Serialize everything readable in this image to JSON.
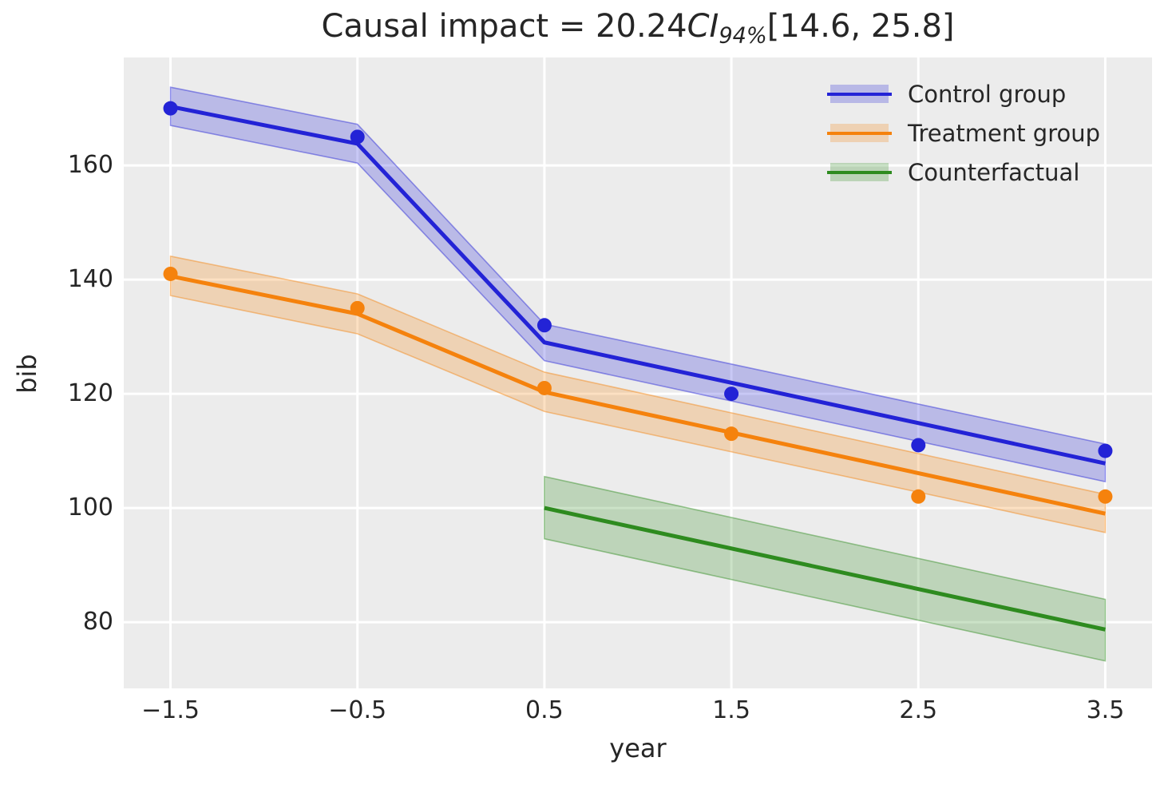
{
  "title": {
    "prefix": "Causal impact = 20.24",
    "ci": "CI",
    "sub": "94%",
    "interval": "[14.6, 25.8]"
  },
  "colors": {
    "figure_background": "#ffffff",
    "plot_background": "#ececec",
    "grid": "#ffffff",
    "text": "#262626",
    "control": "#2323d6",
    "treatment": "#f5820d",
    "counterfactual": "#2e8b1f"
  },
  "chart_data": {
    "type": "line",
    "title": "Causal impact = 20.24CI94%[14.6, 25.8]",
    "xlabel": "year",
    "ylabel": "bib",
    "xlim": [
      -1.75,
      3.75
    ],
    "ylim": [
      68.4,
      178.9
    ],
    "x_ticks": [
      -1.5,
      -0.5,
      0.5,
      1.5,
      2.5,
      3.5
    ],
    "x_tick_labels": [
      "−1.5",
      "−0.5",
      "0.5",
      "1.5",
      "2.5",
      "3.5"
    ],
    "y_ticks": [
      80,
      100,
      120,
      140,
      160
    ],
    "y_tick_labels": [
      "80",
      "100",
      "120",
      "140",
      "160"
    ],
    "grid": true,
    "legend_position": "upper right",
    "series": [
      {
        "name": "Control group",
        "color": "#2323d6",
        "band_alpha": 0.25,
        "line_x": [
          -1.5,
          -0.5,
          0.5,
          3.5
        ],
        "line_y": [
          170.3,
          163.8,
          129.0,
          107.8
        ],
        "band_upper": [
          173.7,
          167.2,
          132.2,
          111.2
        ],
        "band_lower": [
          167.0,
          160.4,
          125.8,
          104.6
        ],
        "scatter_x": [
          -1.5,
          -0.5,
          0.5,
          1.5,
          2.5,
          3.5
        ],
        "scatter_y": [
          170,
          165,
          132,
          120,
          111,
          110
        ]
      },
      {
        "name": "Treatment group",
        "color": "#f5820d",
        "band_alpha": 0.25,
        "line_x": [
          -1.5,
          -0.5,
          0.5,
          3.5
        ],
        "line_y": [
          140.6,
          134.0,
          120.3,
          99.0
        ],
        "band_upper": [
          144.1,
          137.5,
          123.8,
          102.4
        ],
        "band_lower": [
          137.2,
          130.5,
          116.9,
          95.7
        ],
        "scatter_x": [
          -1.5,
          -0.5,
          0.5,
          1.5,
          2.5,
          3.5
        ],
        "scatter_y": [
          141,
          135,
          121,
          113,
          102,
          102
        ]
      },
      {
        "name": "Counterfactual",
        "color": "#2e8b1f",
        "band_alpha": 0.25,
        "line_x": [
          0.5,
          3.5
        ],
        "line_y": [
          100.0,
          78.7
        ],
        "band_upper": [
          105.5,
          84.0
        ],
        "band_lower": [
          94.6,
          73.2
        ],
        "scatter_x": [],
        "scatter_y": []
      }
    ]
  }
}
